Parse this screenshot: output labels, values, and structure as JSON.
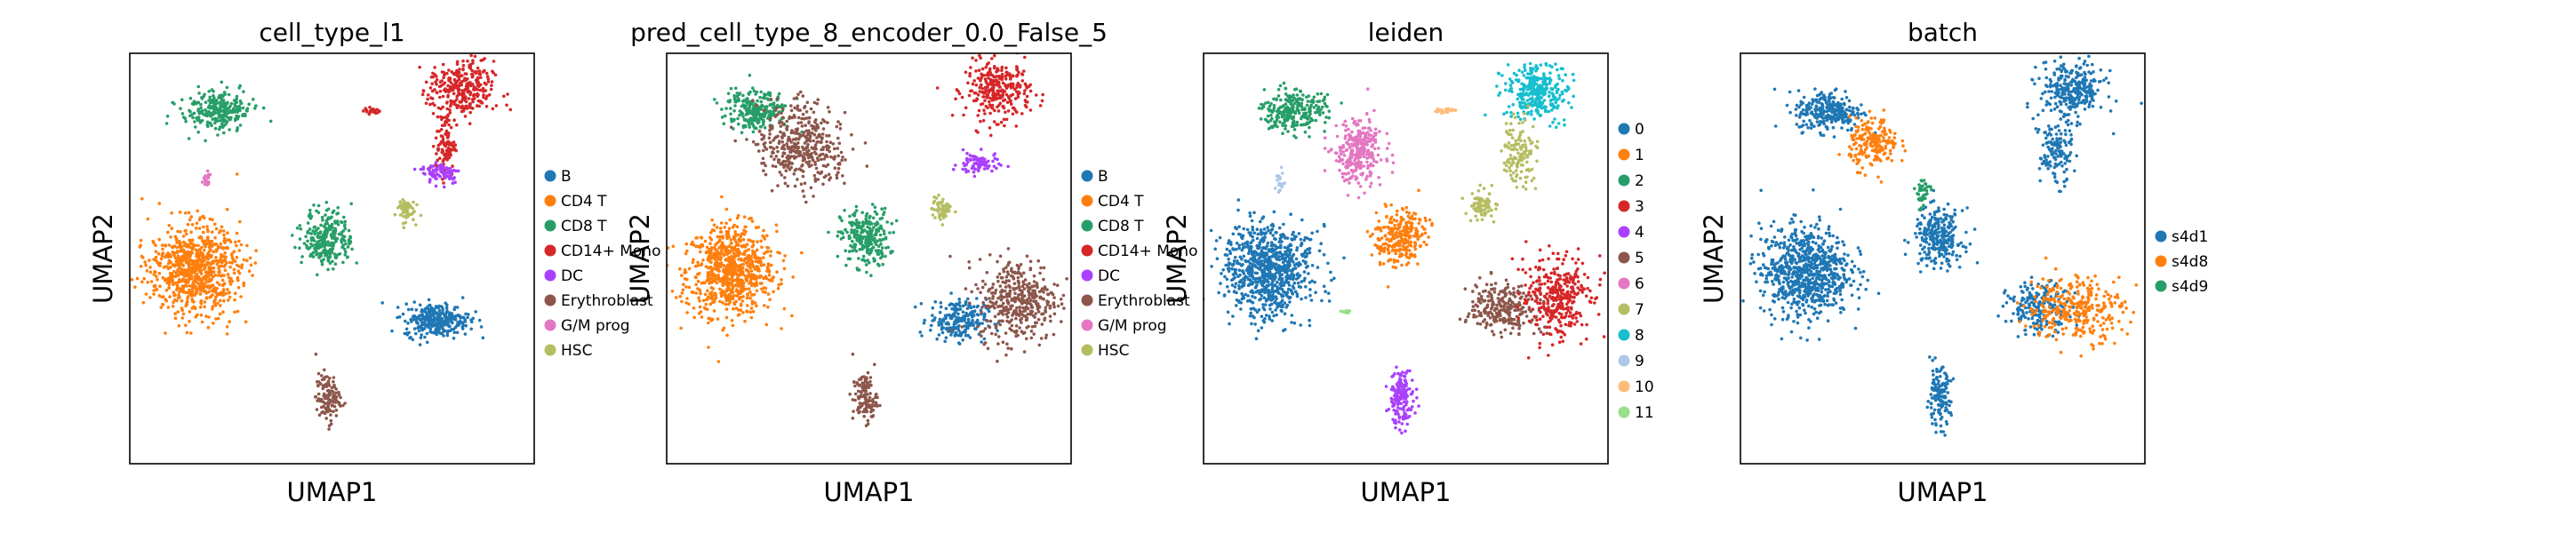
{
  "chart_data": [
    {
      "type": "scatter",
      "title": "cell_type_l1",
      "xlabel": "UMAP1",
      "ylabel": "UMAP2",
      "grid": false,
      "legend_placement": "right",
      "legend": [
        {
          "label": "B",
          "color": "#1f77b4"
        },
        {
          "label": "CD4 T",
          "color": "#ff7f0e"
        },
        {
          "label": "CD8 T",
          "color": "#279e68"
        },
        {
          "label": "CD14+ Mono",
          "color": "#d62728"
        },
        {
          "label": "DC",
          "color": "#aa40fc"
        },
        {
          "label": "Erythroblast",
          "color": "#8c564b"
        },
        {
          "label": "G/M prog",
          "color": "#e377c2"
        },
        {
          "label": "HSC",
          "color": "#b5bd61"
        }
      ],
      "clusters": [
        {
          "label": "CD8 T",
          "x": 0.22,
          "y": 0.86,
          "sx": 0.04,
          "sy": 0.025,
          "n": 260
        },
        {
          "label": "CD4 T",
          "x": 0.16,
          "y": 0.47,
          "sx": 0.055,
          "sy": 0.055,
          "n": 800
        },
        {
          "label": "CD8 T",
          "x": 0.49,
          "y": 0.55,
          "sx": 0.03,
          "sy": 0.035,
          "n": 260
        },
        {
          "label": "CD14+ Mono",
          "x": 0.82,
          "y": 0.91,
          "sx": 0.04,
          "sy": 0.035,
          "n": 300
        },
        {
          "label": "CD14+ Mono",
          "x": 0.78,
          "y": 0.78,
          "sx": 0.012,
          "sy": 0.04,
          "n": 100
        },
        {
          "label": "DC",
          "x": 0.77,
          "y": 0.71,
          "sx": 0.025,
          "sy": 0.014,
          "n": 80
        },
        {
          "label": "B",
          "x": 0.76,
          "y": 0.35,
          "sx": 0.04,
          "sy": 0.02,
          "n": 300
        },
        {
          "label": "Erythroblast",
          "x": 0.49,
          "y": 0.16,
          "sx": 0.015,
          "sy": 0.03,
          "n": 120
        },
        {
          "label": "HSC",
          "x": 0.68,
          "y": 0.62,
          "sx": 0.012,
          "sy": 0.015,
          "n": 60
        },
        {
          "label": "CD14+ Mono",
          "x": 0.6,
          "y": 0.86,
          "sx": 0.01,
          "sy": 0.004,
          "n": 20
        },
        {
          "label": "G/M prog",
          "x": 0.19,
          "y": 0.69,
          "sx": 0.006,
          "sy": 0.012,
          "n": 20
        }
      ]
    },
    {
      "type": "scatter",
      "title": "pred_cell_type_8_encoder_0.0_False_5",
      "xlabel": "UMAP1",
      "ylabel": "UMAP2",
      "grid": false,
      "legend_placement": "right",
      "legend": [
        {
          "label": "B",
          "color": "#1f77b4"
        },
        {
          "label": "CD4 T",
          "color": "#ff7f0e"
        },
        {
          "label": "CD8 T",
          "color": "#279e68"
        },
        {
          "label": "CD14+ Mono",
          "color": "#d62728"
        },
        {
          "label": "DC",
          "color": "#aa40fc"
        },
        {
          "label": "Erythroblast",
          "color": "#8c564b"
        },
        {
          "label": "G/M prog",
          "color": "#e377c2"
        },
        {
          "label": "HSC",
          "color": "#b5bd61"
        }
      ],
      "clusters": [
        {
          "label": "CD8 T",
          "x": 0.22,
          "y": 0.86,
          "sx": 0.04,
          "sy": 0.025,
          "n": 260
        },
        {
          "label": "Erythroblast",
          "x": 0.33,
          "y": 0.78,
          "sx": 0.05,
          "sy": 0.05,
          "n": 400
        },
        {
          "label": "CD4 T",
          "x": 0.16,
          "y": 0.47,
          "sx": 0.055,
          "sy": 0.055,
          "n": 800
        },
        {
          "label": "CD8 T",
          "x": 0.49,
          "y": 0.55,
          "sx": 0.03,
          "sy": 0.035,
          "n": 260
        },
        {
          "label": "CD14+ Mono",
          "x": 0.82,
          "y": 0.91,
          "sx": 0.04,
          "sy": 0.035,
          "n": 300
        },
        {
          "label": "DC",
          "x": 0.77,
          "y": 0.73,
          "sx": 0.025,
          "sy": 0.014,
          "n": 80
        },
        {
          "label": "B",
          "x": 0.72,
          "y": 0.35,
          "sx": 0.035,
          "sy": 0.025,
          "n": 220
        },
        {
          "label": "Erythroblast",
          "x": 0.87,
          "y": 0.4,
          "sx": 0.05,
          "sy": 0.05,
          "n": 400
        },
        {
          "label": "Erythroblast",
          "x": 0.49,
          "y": 0.16,
          "sx": 0.015,
          "sy": 0.03,
          "n": 120
        },
        {
          "label": "HSC",
          "x": 0.68,
          "y": 0.62,
          "sx": 0.012,
          "sy": 0.015,
          "n": 60
        }
      ]
    },
    {
      "type": "scatter",
      "title": "leiden",
      "xlabel": "UMAP1",
      "ylabel": "UMAP2",
      "grid": false,
      "legend_placement": "right",
      "legend": [
        {
          "label": "0",
          "color": "#1f77b4"
        },
        {
          "label": "1",
          "color": "#ff7f0e"
        },
        {
          "label": "2",
          "color": "#279e68"
        },
        {
          "label": "3",
          "color": "#d62728"
        },
        {
          "label": "4",
          "color": "#aa40fc"
        },
        {
          "label": "5",
          "color": "#8c564b"
        },
        {
          "label": "6",
          "color": "#e377c2"
        },
        {
          "label": "7",
          "color": "#b5bd61"
        },
        {
          "label": "8",
          "color": "#17becf"
        },
        {
          "label": "9",
          "color": "#aec7e8"
        },
        {
          "label": "10",
          "color": "#ffbb78"
        },
        {
          "label": "11",
          "color": "#98df8a"
        }
      ],
      "clusters": [
        {
          "label": "2",
          "x": 0.22,
          "y": 0.86,
          "sx": 0.04,
          "sy": 0.025,
          "n": 260
        },
        {
          "label": "0",
          "x": 0.16,
          "y": 0.47,
          "sx": 0.055,
          "sy": 0.055,
          "n": 800
        },
        {
          "label": "6",
          "x": 0.38,
          "y": 0.76,
          "sx": 0.03,
          "sy": 0.04,
          "n": 300
        },
        {
          "label": "1",
          "x": 0.49,
          "y": 0.55,
          "sx": 0.03,
          "sy": 0.035,
          "n": 260
        },
        {
          "label": "8",
          "x": 0.82,
          "y": 0.91,
          "sx": 0.04,
          "sy": 0.035,
          "n": 300
        },
        {
          "label": "7",
          "x": 0.78,
          "y": 0.76,
          "sx": 0.02,
          "sy": 0.04,
          "n": 130
        },
        {
          "label": "7",
          "x": 0.69,
          "y": 0.63,
          "sx": 0.018,
          "sy": 0.018,
          "n": 80
        },
        {
          "label": "5",
          "x": 0.74,
          "y": 0.38,
          "sx": 0.04,
          "sy": 0.03,
          "n": 260
        },
        {
          "label": "3",
          "x": 0.88,
          "y": 0.4,
          "sx": 0.04,
          "sy": 0.05,
          "n": 330
        },
        {
          "label": "4",
          "x": 0.49,
          "y": 0.16,
          "sx": 0.015,
          "sy": 0.035,
          "n": 160
        },
        {
          "label": "9",
          "x": 0.19,
          "y": 0.69,
          "sx": 0.006,
          "sy": 0.012,
          "n": 20
        },
        {
          "label": "10",
          "x": 0.6,
          "y": 0.86,
          "sx": 0.012,
          "sy": 0.004,
          "n": 20
        },
        {
          "label": "11",
          "x": 0.35,
          "y": 0.37,
          "sx": 0.006,
          "sy": 0.003,
          "n": 10
        }
      ]
    },
    {
      "type": "scatter",
      "title": "batch",
      "xlabel": "UMAP1",
      "ylabel": "UMAP2",
      "grid": false,
      "legend_placement": "right",
      "legend": [
        {
          "label": "s4d1",
          "color": "#1f77b4"
        },
        {
          "label": "s4d8",
          "color": "#ff7f0e"
        },
        {
          "label": "s4d9",
          "color": "#279e68"
        }
      ],
      "clusters": [
        {
          "label": "s4d1",
          "x": 0.22,
          "y": 0.86,
          "sx": 0.04,
          "sy": 0.025,
          "n": 260
        },
        {
          "label": "s4d1",
          "x": 0.16,
          "y": 0.47,
          "sx": 0.055,
          "sy": 0.055,
          "n": 800
        },
        {
          "label": "s4d8",
          "x": 0.33,
          "y": 0.78,
          "sx": 0.03,
          "sy": 0.03,
          "n": 200
        },
        {
          "label": "s4d1",
          "x": 0.49,
          "y": 0.55,
          "sx": 0.03,
          "sy": 0.035,
          "n": 260
        },
        {
          "label": "s4d1",
          "x": 0.82,
          "y": 0.91,
          "sx": 0.04,
          "sy": 0.035,
          "n": 300
        },
        {
          "label": "s4d1",
          "x": 0.78,
          "y": 0.76,
          "sx": 0.02,
          "sy": 0.04,
          "n": 130
        },
        {
          "label": "s4d1",
          "x": 0.74,
          "y": 0.38,
          "sx": 0.04,
          "sy": 0.03,
          "n": 200
        },
        {
          "label": "s4d8",
          "x": 0.83,
          "y": 0.38,
          "sx": 0.06,
          "sy": 0.04,
          "n": 300
        },
        {
          "label": "s4d9",
          "x": 0.45,
          "y": 0.66,
          "sx": 0.01,
          "sy": 0.02,
          "n": 40
        },
        {
          "label": "s4d1",
          "x": 0.49,
          "y": 0.16,
          "sx": 0.015,
          "sy": 0.035,
          "n": 140
        }
      ]
    }
  ]
}
